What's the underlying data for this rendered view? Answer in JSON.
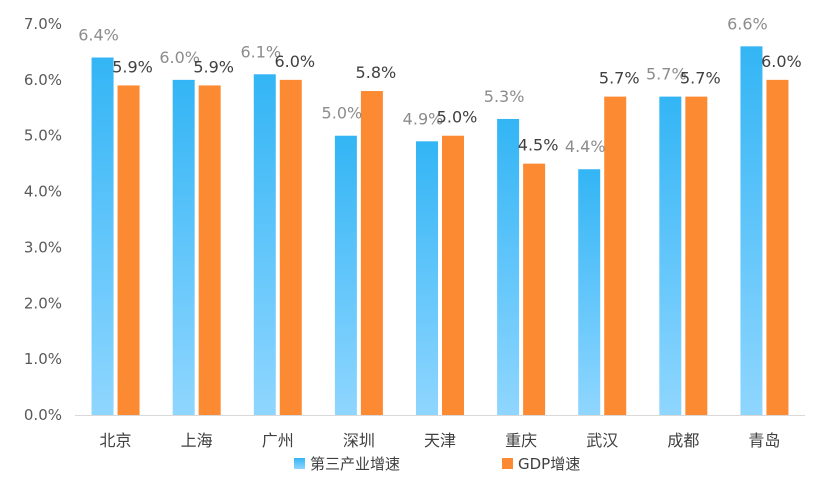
{
  "chart_data": {
    "type": "bar",
    "title": "",
    "xlabel": "",
    "ylabel": "",
    "categories": [
      "北京",
      "上海",
      "广州",
      "深圳",
      "天津",
      "重庆",
      "武汉",
      "成都",
      "青岛"
    ],
    "series": [
      {
        "name": "第三产业增速",
        "values": [
          6.4,
          6.0,
          6.1,
          5.0,
          4.9,
          5.3,
          4.4,
          5.7,
          6.6
        ],
        "labels": [
          "6.4%",
          "6.0%",
          "6.1%",
          "5.0%",
          "4.9%",
          "5.3%",
          "4.4%",
          "5.7%",
          "6.6%"
        ],
        "color": "#33b5f5",
        "color_light": "#8fd6ff"
      },
      {
        "name": "GDP增速",
        "values": [
          5.9,
          5.9,
          6.0,
          5.8,
          5.0,
          4.5,
          5.7,
          5.7,
          6.0
        ],
        "labels": [
          "5.9%",
          "5.9%",
          "6.0%",
          "5.8%",
          "5.0%",
          "4.5%",
          "5.7%",
          "5.7%",
          "6.0%"
        ],
        "color": "#fb8a33"
      }
    ],
    "ylim": [
      0,
      7
    ],
    "yticks": [
      "0.0%",
      "1.0%",
      "2.0%",
      "3.0%",
      "4.0%",
      "5.0%",
      "6.0%",
      "7.0%"
    ],
    "grid": false,
    "legend_position": "bottom"
  }
}
